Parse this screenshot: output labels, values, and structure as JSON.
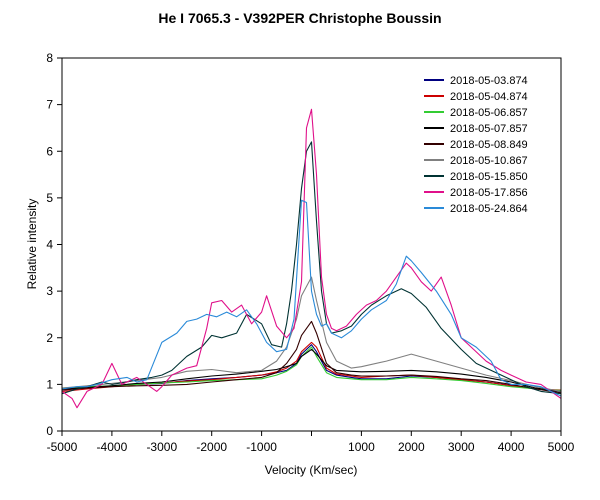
{
  "chart_data": {
    "type": "line",
    "title": "He I 7065.3 - V392PER   Christophe Boussin",
    "xlabel": "Velocity (Km/sec)",
    "ylabel": "Relative intensity",
    "xlim": [
      -5000,
      5000
    ],
    "ylim": [
      0,
      8
    ],
    "x_ticks": [
      -5000,
      -4000,
      -3000,
      -2000,
      -1000,
      0,
      1000,
      2000,
      3000,
      4000,
      5000
    ],
    "x_tick_labels": [
      "-5000",
      "-4000",
      "-3000",
      "-2000",
      "-1000",
      "",
      "1000",
      "2000",
      "3000",
      "4000",
      "5000"
    ],
    "y_ticks": [
      0,
      1,
      2,
      3,
      4,
      5,
      6,
      7,
      8
    ],
    "y_tick_labels": [
      "0",
      "1",
      "2",
      "3",
      "4",
      "5",
      "6",
      "7",
      "8"
    ],
    "legend_position": "top-right",
    "grid": false,
    "series": [
      {
        "name": "2018-05-03.874",
        "color": "#000080",
        "x": [
          -5000,
          -4500,
          -4000,
          -3500,
          -3000,
          -2500,
          -2000,
          -1500,
          -1000,
          -700,
          -500,
          -300,
          -200,
          0,
          100,
          300,
          500,
          800,
          1000,
          1500,
          2000,
          2500,
          3000,
          3500,
          4000,
          4500,
          5000
        ],
        "y": [
          0.88,
          0.92,
          0.97,
          1.0,
          1.02,
          1.08,
          1.12,
          1.15,
          1.2,
          1.25,
          1.3,
          1.45,
          1.65,
          1.85,
          1.7,
          1.3,
          1.2,
          1.15,
          1.12,
          1.12,
          1.18,
          1.15,
          1.1,
          1.05,
          0.98,
          0.9,
          0.85
        ]
      },
      {
        "name": "2018-05-04.874",
        "color": "#cc0000",
        "x": [
          -5000,
          -4500,
          -4000,
          -3500,
          -3000,
          -2500,
          -2000,
          -1500,
          -1000,
          -700,
          -500,
          -300,
          -200,
          0,
          100,
          300,
          500,
          800,
          1000,
          1500,
          2000,
          2500,
          3000,
          3500,
          4000,
          4500,
          5000
        ],
        "y": [
          0.85,
          0.9,
          0.95,
          1.0,
          1.03,
          1.07,
          1.1,
          1.15,
          1.2,
          1.27,
          1.35,
          1.5,
          1.7,
          1.9,
          1.8,
          1.35,
          1.22,
          1.18,
          1.15,
          1.18,
          1.2,
          1.15,
          1.1,
          1.05,
          0.97,
          0.9,
          0.88
        ]
      },
      {
        "name": "2018-05-06.857",
        "color": "#33cc33",
        "x": [
          -5000,
          -4500,
          -4000,
          -3500,
          -3000,
          -2500,
          -2000,
          -1500,
          -1000,
          -700,
          -500,
          -300,
          -200,
          0,
          100,
          300,
          500,
          800,
          1000,
          1500,
          2000,
          2500,
          3000,
          3500,
          4000,
          4500,
          5000
        ],
        "y": [
          0.92,
          0.95,
          0.97,
          1.0,
          1.03,
          1.05,
          1.08,
          1.1,
          1.12,
          1.2,
          1.28,
          1.42,
          1.6,
          1.8,
          1.6,
          1.25,
          1.15,
          1.12,
          1.1,
          1.1,
          1.15,
          1.12,
          1.08,
          1.02,
          0.95,
          0.9,
          0.87
        ]
      },
      {
        "name": "2018-05-07.857",
        "color": "#000000",
        "x": [
          -5000,
          -4500,
          -4000,
          -3500,
          -3000,
          -2500,
          -2000,
          -1500,
          -1000,
          -700,
          -500,
          -300,
          -200,
          0,
          100,
          300,
          500,
          800,
          1000,
          1500,
          2000,
          2500,
          3000,
          3500,
          4000,
          4500,
          5000
        ],
        "y": [
          0.9,
          0.93,
          0.97,
          1.02,
          1.05,
          1.12,
          1.18,
          1.22,
          1.28,
          1.32,
          1.38,
          1.45,
          1.6,
          1.75,
          1.65,
          1.4,
          1.3,
          1.28,
          1.27,
          1.28,
          1.3,
          1.27,
          1.22,
          1.15,
          1.05,
          0.92,
          0.85
        ]
      },
      {
        "name": "2018-05-08.849",
        "color": "#330000",
        "x": [
          -5000,
          -4500,
          -4000,
          -3500,
          -3000,
          -2500,
          -2000,
          -1500,
          -1000,
          -700,
          -500,
          -300,
          -200,
          0,
          100,
          300,
          500,
          800,
          1000,
          1500,
          2000,
          2500,
          3000,
          3500,
          4000,
          4500,
          5000
        ],
        "y": [
          0.88,
          0.92,
          0.95,
          0.97,
          0.98,
          1.0,
          1.05,
          1.1,
          1.15,
          1.25,
          1.45,
          1.75,
          2.05,
          2.35,
          2.1,
          1.45,
          1.25,
          1.2,
          1.18,
          1.18,
          1.2,
          1.17,
          1.12,
          1.08,
          1.0,
          0.9,
          0.82
        ]
      },
      {
        "name": "2018-05-10.867",
        "color": "#808080",
        "x": [
          -5000,
          -4500,
          -4000,
          -3500,
          -3000,
          -2500,
          -2000,
          -1500,
          -1000,
          -700,
          -500,
          -300,
          -200,
          0,
          100,
          300,
          500,
          800,
          1000,
          1500,
          2000,
          2500,
          3000,
          3500,
          4000,
          4500,
          5000
        ],
        "y": [
          0.92,
          0.97,
          1.02,
          1.08,
          1.15,
          1.28,
          1.32,
          1.25,
          1.3,
          1.5,
          1.8,
          2.4,
          2.9,
          3.3,
          2.8,
          1.9,
          1.5,
          1.35,
          1.38,
          1.5,
          1.65,
          1.5,
          1.35,
          1.2,
          1.08,
          0.95,
          0.85
        ]
      },
      {
        "name": "2018-05-15.850",
        "color": "#003333",
        "x": [
          -5000,
          -4700,
          -4500,
          -4200,
          -4000,
          -3700,
          -3500,
          -3200,
          -3000,
          -2800,
          -2500,
          -2200,
          -2000,
          -1800,
          -1500,
          -1300,
          -1000,
          -800,
          -600,
          -500,
          -400,
          -300,
          -200,
          -100,
          0,
          100,
          200,
          300,
          400,
          600,
          800,
          1000,
          1200,
          1500,
          1800,
          2000,
          2300,
          2600,
          3000,
          3300,
          3600,
          4000,
          4300,
          4600,
          5000
        ],
        "y": [
          0.8,
          0.9,
          0.95,
          1.05,
          1.0,
          1.05,
          1.1,
          1.15,
          1.2,
          1.3,
          1.6,
          1.8,
          2.05,
          2.0,
          2.1,
          2.5,
          2.3,
          1.85,
          1.8,
          2.3,
          3.0,
          4.0,
          5.2,
          6.0,
          6.2,
          4.5,
          3.0,
          2.3,
          2.1,
          2.15,
          2.25,
          2.5,
          2.7,
          2.9,
          3.05,
          2.95,
          2.65,
          2.2,
          1.75,
          1.45,
          1.3,
          1.1,
          0.95,
          0.85,
          0.8
        ]
      },
      {
        "name": "2018-05-17.856",
        "color": "#e0108a",
        "x": [
          -5000,
          -4800,
          -4700,
          -4500,
          -4200,
          -4000,
          -3800,
          -3500,
          -3300,
          -3100,
          -3000,
          -2800,
          -2500,
          -2300,
          -2100,
          -2000,
          -1800,
          -1600,
          -1400,
          -1200,
          -1000,
          -900,
          -700,
          -500,
          -350,
          -200,
          -100,
          0,
          100,
          200,
          300,
          400,
          500,
          700,
          900,
          1100,
          1300,
          1500,
          1700,
          1900,
          2000,
          2200,
          2400,
          2600,
          2800,
          3000,
          3200,
          3500,
          3800,
          4000,
          4300,
          4600,
          5000
        ],
        "y": [
          0.85,
          0.7,
          0.5,
          0.85,
          1.0,
          1.45,
          1.0,
          1.15,
          1.0,
          0.85,
          0.95,
          1.2,
          1.35,
          1.4,
          2.2,
          2.75,
          2.8,
          2.55,
          2.7,
          2.3,
          2.55,
          2.9,
          2.25,
          2.0,
          2.2,
          3.2,
          6.5,
          6.9,
          5.5,
          3.3,
          2.5,
          2.2,
          2.15,
          2.25,
          2.5,
          2.7,
          2.8,
          3.0,
          3.3,
          3.6,
          3.5,
          3.2,
          3.0,
          3.3,
          2.7,
          2.0,
          1.8,
          1.5,
          1.3,
          1.2,
          1.05,
          1.0,
          0.7
        ]
      },
      {
        "name": "2018-05-24.864",
        "color": "#2a8ad8",
        "x": [
          -5000,
          -4700,
          -4500,
          -4300,
          -4000,
          -3700,
          -3500,
          -3300,
          -3000,
          -2700,
          -2500,
          -2300,
          -2100,
          -1900,
          -1700,
          -1500,
          -1300,
          -1100,
          -900,
          -700,
          -500,
          -350,
          -200,
          -100,
          0,
          100,
          200,
          300,
          400,
          600,
          800,
          1000,
          1200,
          1500,
          1700,
          1900,
          2000,
          2200,
          2500,
          2800,
          3000,
          3300,
          3600,
          3800,
          4000,
          4300,
          4600,
          5000
        ],
        "y": [
          0.9,
          0.95,
          0.95,
          1.0,
          1.1,
          1.15,
          1.05,
          1.1,
          1.9,
          2.1,
          2.35,
          2.4,
          2.5,
          2.45,
          2.55,
          2.45,
          2.6,
          2.3,
          1.9,
          1.7,
          1.75,
          2.4,
          4.95,
          4.9,
          3.0,
          2.5,
          2.25,
          2.3,
          2.1,
          2.0,
          2.15,
          2.4,
          2.6,
          2.8,
          3.15,
          3.75,
          3.65,
          3.4,
          3.0,
          2.5,
          2.0,
          1.8,
          1.5,
          1.1,
          1.0,
          1.0,
          0.95,
          0.75
        ]
      }
    ]
  }
}
